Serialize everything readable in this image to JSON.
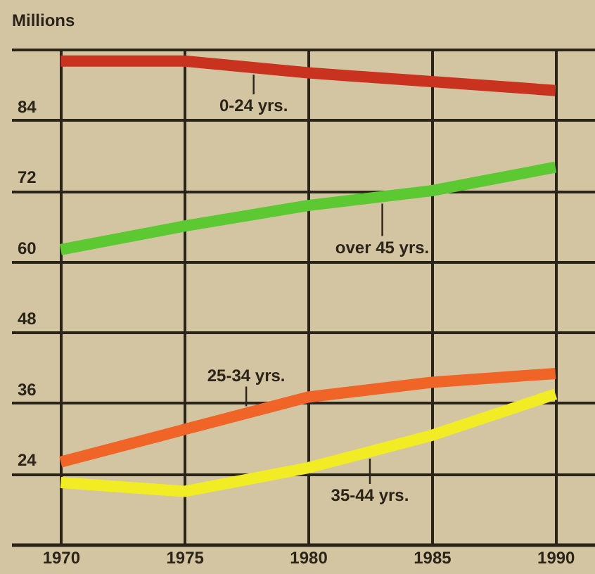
{
  "chart_data": {
    "type": "line",
    "ylabel": "Millions",
    "x": [
      1970,
      1975,
      1980,
      1985,
      1990
    ],
    "xlim": [
      1968,
      1991.6
    ],
    "xticks": [
      1970,
      1975,
      1980,
      1985,
      1990
    ],
    "ylim": [
      12,
      96
    ],
    "yticks": [
      {
        "value": 12,
        "label": null
      },
      24,
      36,
      48,
      60,
      72,
      84,
      {
        "value": 96,
        "label": null
      }
    ],
    "grid": true,
    "line_style": "solid",
    "series": [
      {
        "name": "0-24 yrs.",
        "color": "#c8321e",
        "values": [
          94,
          94,
          92,
          90.5,
          89
        ]
      },
      {
        "name": "over 45 yrs.",
        "color": "#5cc832",
        "values": [
          62,
          66,
          69.5,
          72,
          76
        ]
      },
      {
        "name": "25-34 yrs.",
        "color": "#f06428",
        "values": [
          26,
          31.5,
          37,
          39.5,
          41
        ]
      },
      {
        "name": "35-44 yrs.",
        "color": "#f2ec24",
        "values": [
          22.5,
          21,
          25,
          30.5,
          37.5
        ]
      }
    ]
  }
}
